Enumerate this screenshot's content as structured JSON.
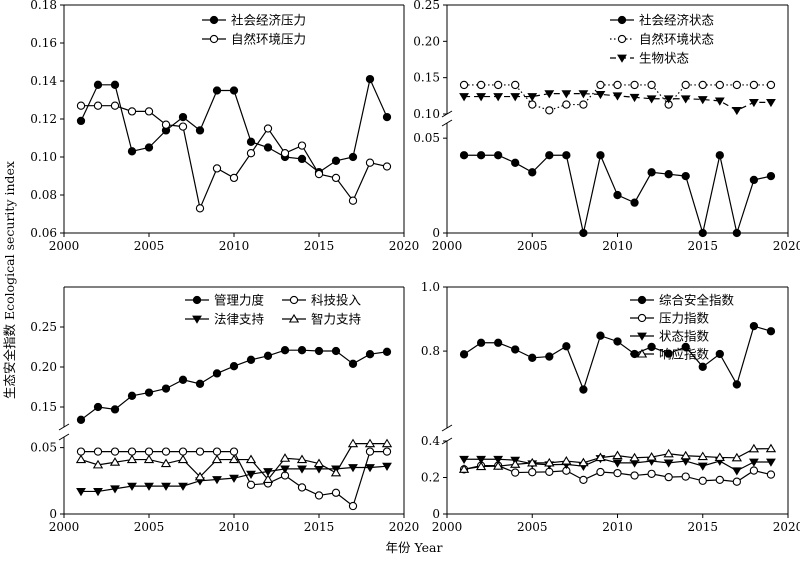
{
  "figure": {
    "xlabel": "年份 Year",
    "ylabel": "生态安全指数 Ecological security index"
  },
  "chart_data": [
    {
      "type": "line",
      "panel": "top-left",
      "x_ticks": [
        "2000",
        "2005",
        "2010",
        "2015",
        "2020"
      ],
      "y_ticks": [
        "0.06",
        "0.08",
        "0.10",
        "0.12",
        "0.14",
        "0.16",
        "0.18"
      ],
      "xlim": [
        2000,
        2020
      ],
      "ylim": [
        0.06,
        0.18
      ],
      "legend_position": "top-right",
      "x": [
        2001,
        2002,
        2003,
        2004,
        2005,
        2006,
        2007,
        2008,
        2009,
        2010,
        2011,
        2012,
        2013,
        2014,
        2015,
        2016,
        2017,
        2018,
        2019
      ],
      "series": [
        {
          "name": "社会经济压力",
          "marker": "filled-circle",
          "line": "solid",
          "values": [
            0.119,
            0.138,
            0.138,
            0.103,
            0.105,
            0.114,
            0.121,
            0.114,
            0.135,
            0.135,
            0.108,
            0.105,
            0.1,
            0.099,
            0.092,
            0.098,
            0.1,
            0.141,
            0.121
          ]
        },
        {
          "name": "自然环境压力",
          "marker": "open-circle",
          "line": "solid",
          "values": [
            0.127,
            0.127,
            0.127,
            0.124,
            0.124,
            0.117,
            0.116,
            0.073,
            0.094,
            0.089,
            0.102,
            0.115,
            0.102,
            0.106,
            0.091,
            0.089,
            0.077,
            0.097,
            0.095
          ]
        }
      ]
    },
    {
      "type": "line",
      "panel": "top-right",
      "x_ticks": [
        "2000",
        "2005",
        "2010",
        "2015",
        "2020"
      ],
      "y_ticks": [
        "0",
        "0.05",
        "0.10",
        "0.15",
        "0.20",
        "0.25"
      ],
      "xlim": [
        2000,
        2020
      ],
      "y_break": [
        0.05,
        0.1
      ],
      "legend_position": "top-right",
      "x": [
        2001,
        2002,
        2003,
        2004,
        2005,
        2006,
        2007,
        2008,
        2009,
        2010,
        2011,
        2012,
        2013,
        2014,
        2015,
        2016,
        2017,
        2018,
        2019
      ],
      "series": [
        {
          "name": "社会经济状态",
          "marker": "filled-circle",
          "line": "solid",
          "values": [
            0.041,
            0.041,
            0.041,
            0.037,
            0.032,
            0.041,
            0.041,
            0.0,
            0.041,
            0.02,
            0.016,
            0.032,
            0.031,
            0.03,
            0.0,
            0.041,
            0.0,
            0.028,
            0.03
          ]
        },
        {
          "name": "自然环境状态",
          "marker": "open-circle",
          "line": "dotted",
          "values": [
            0.14,
            0.14,
            0.14,
            0.14,
            0.113,
            0.105,
            0.113,
            0.113,
            0.14,
            0.14,
            0.14,
            0.14,
            0.113,
            0.14,
            0.14,
            0.14,
            0.14,
            0.14,
            0.14
          ]
        },
        {
          "name": "生物状态",
          "marker": "filled-triangle-down",
          "line": "dashed",
          "values": [
            0.124,
            0.124,
            0.124,
            0.124,
            0.124,
            0.128,
            0.128,
            0.128,
            0.127,
            0.125,
            0.123,
            0.121,
            0.121,
            0.121,
            0.12,
            0.118,
            0.105,
            0.116,
            0.116
          ]
        }
      ]
    },
    {
      "type": "line",
      "panel": "bottom-left",
      "x_ticks": [
        "2000",
        "2005",
        "2010",
        "2015",
        "2020"
      ],
      "y_ticks": [
        "0",
        "0.05",
        "0.15",
        "0.20",
        "0.25"
      ],
      "xlim": [
        2000,
        2020
      ],
      "y_break": [
        0.05,
        0.15
      ],
      "legend_position": "top-right",
      "x": [
        2001,
        2002,
        2003,
        2004,
        2005,
        2006,
        2007,
        2008,
        2009,
        2010,
        2011,
        2012,
        2013,
        2014,
        2015,
        2016,
        2017,
        2018,
        2019
      ],
      "series": [
        {
          "name": "管理力度",
          "marker": "filled-circle",
          "line": "solid",
          "values": [
            0.134,
            0.15,
            0.147,
            0.164,
            0.168,
            0.173,
            0.184,
            0.179,
            0.192,
            0.201,
            0.209,
            0.214,
            0.221,
            0.221,
            0.22,
            0.22,
            0.204,
            0.216,
            0.219
          ]
        },
        {
          "name": "科技投入",
          "marker": "open-circle",
          "line": "solid",
          "values": [
            0.047,
            0.047,
            0.047,
            0.047,
            0.047,
            0.047,
            0.047,
            0.047,
            0.047,
            0.047,
            0.022,
            0.023,
            0.029,
            0.02,
            0.014,
            0.016,
            0.006,
            0.047,
            0.047
          ]
        },
        {
          "name": "法律支持",
          "marker": "filled-triangle-down",
          "line": "solid",
          "values": [
            0.017,
            0.017,
            0.019,
            0.021,
            0.021,
            0.021,
            0.021,
            0.025,
            0.026,
            0.027,
            0.03,
            0.032,
            0.034,
            0.034,
            0.034,
            0.034,
            0.035,
            0.035,
            0.036
          ]
        },
        {
          "name": "智力支持",
          "marker": "open-triangle-up",
          "line": "solid",
          "values": [
            0.041,
            0.037,
            0.039,
            0.041,
            0.041,
            0.038,
            0.041,
            0.028,
            0.041,
            0.041,
            0.041,
            0.026,
            0.042,
            0.041,
            0.038,
            0.031,
            0.053,
            0.053,
            0.053
          ]
        }
      ]
    },
    {
      "type": "line",
      "panel": "bottom-right",
      "x_ticks": [
        "2000",
        "2005",
        "2010",
        "2015",
        "2020"
      ],
      "y_ticks": [
        "0",
        "0.2",
        "0.4",
        "0.8",
        "1.0"
      ],
      "xlim": [
        2000,
        2020
      ],
      "y_break": [
        0.4,
        0.6
      ],
      "legend_position": "top-right",
      "x": [
        2001,
        2002,
        2003,
        2004,
        2005,
        2006,
        2007,
        2008,
        2009,
        2010,
        2011,
        2012,
        2013,
        2014,
        2015,
        2016,
        2017,
        2018,
        2019
      ],
      "series": [
        {
          "name": "综合安全指数",
          "marker": "filled-circle",
          "line": "solid",
          "values": [
            0.79,
            0.826,
            0.826,
            0.805,
            0.779,
            0.783,
            0.815,
            0.68,
            0.848,
            0.83,
            0.791,
            0.813,
            0.792,
            0.813,
            0.751,
            0.791,
            0.696,
            0.878,
            0.862
          ]
        },
        {
          "name": "压力指数",
          "marker": "open-circle",
          "line": "solid",
          "values": [
            0.245,
            0.265,
            0.265,
            0.227,
            0.229,
            0.231,
            0.237,
            0.187,
            0.23,
            0.224,
            0.211,
            0.22,
            0.202,
            0.205,
            0.182,
            0.187,
            0.177,
            0.238,
            0.216
          ]
        },
        {
          "name": "状态指数",
          "marker": "filled-triangle-down",
          "line": "solid",
          "values": [
            0.3,
            0.3,
            0.3,
            0.295,
            0.275,
            0.27,
            0.272,
            0.262,
            0.304,
            0.28,
            0.28,
            0.29,
            0.28,
            0.29,
            0.263,
            0.29,
            0.237,
            0.285,
            0.285
          ]
        },
        {
          "name": "响应指数",
          "marker": "open-triangle-up",
          "line": "solid",
          "values": [
            0.245,
            0.26,
            0.262,
            0.272,
            0.28,
            0.28,
            0.29,
            0.281,
            0.309,
            0.32,
            0.308,
            0.312,
            0.33,
            0.319,
            0.315,
            0.31,
            0.308,
            0.357,
            0.358
          ]
        }
      ]
    }
  ]
}
